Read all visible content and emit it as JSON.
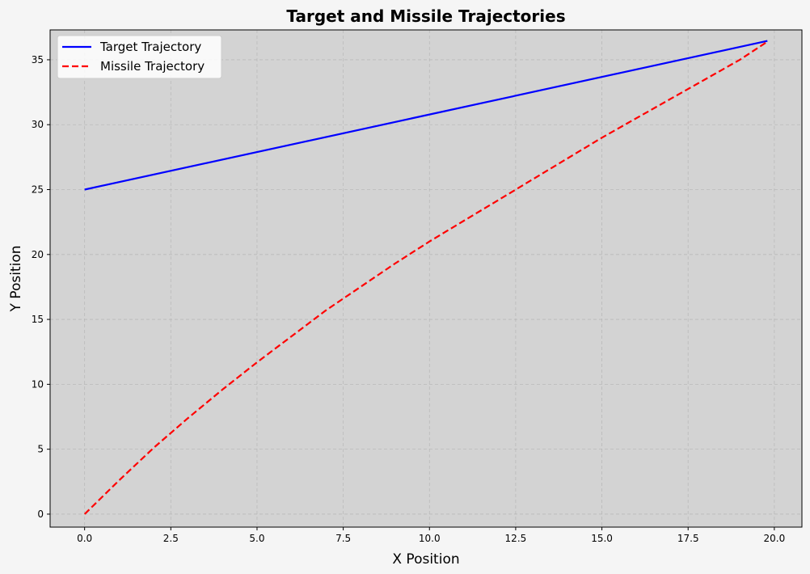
{
  "chart_data": {
    "type": "line",
    "title": "Target and Missile Trajectories",
    "xlabel": "X Position",
    "ylabel": "Y Position",
    "xlim": [
      -1,
      20.8
    ],
    "ylim": [
      -1,
      37.3
    ],
    "xticks": [
      0,
      2.5,
      5,
      7.5,
      10,
      12.5,
      15,
      17.5,
      20
    ],
    "xtick_labels": [
      "0.0",
      "2.5",
      "5.0",
      "7.5",
      "10.0",
      "12.5",
      "15.0",
      "17.5",
      "20.0"
    ],
    "yticks": [
      0,
      5,
      10,
      15,
      20,
      25,
      30,
      35
    ],
    "ytick_labels": [
      "0",
      "5",
      "10",
      "15",
      "20",
      "25",
      "30",
      "35"
    ],
    "grid": true,
    "legend_position": "top-left",
    "plot_background": "#d3d3d3",
    "series": [
      {
        "name": "Target Trajectory",
        "color": "#0000ff",
        "style": "solid",
        "x": [
          0,
          19.8
        ],
        "y": [
          25,
          36.45
        ]
      },
      {
        "name": "Missile Trajectory",
        "color": "#ff0000",
        "style": "dashed",
        "x": [
          0,
          1,
          2,
          3,
          4,
          5,
          6,
          7,
          8,
          9,
          10,
          11,
          12,
          13,
          14,
          15,
          16,
          17,
          18,
          19,
          19.8
        ],
        "y": [
          0,
          2.6,
          5.1,
          7.4,
          9.6,
          11.7,
          13.7,
          15.7,
          17.5,
          19.3,
          21.0,
          22.6,
          24.2,
          25.8,
          27.4,
          29.0,
          30.5,
          32.0,
          33.5,
          35.0,
          36.4
        ]
      }
    ]
  }
}
